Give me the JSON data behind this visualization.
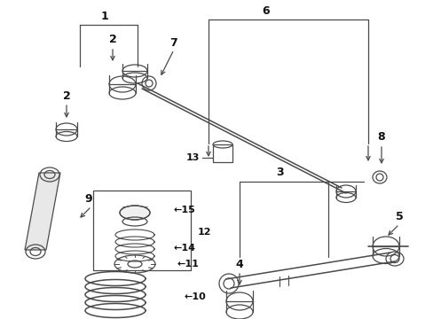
{
  "bg_color": "#ffffff",
  "line_color": "#4a4a4a",
  "figsize": [
    4.89,
    3.6
  ],
  "dpi": 100
}
